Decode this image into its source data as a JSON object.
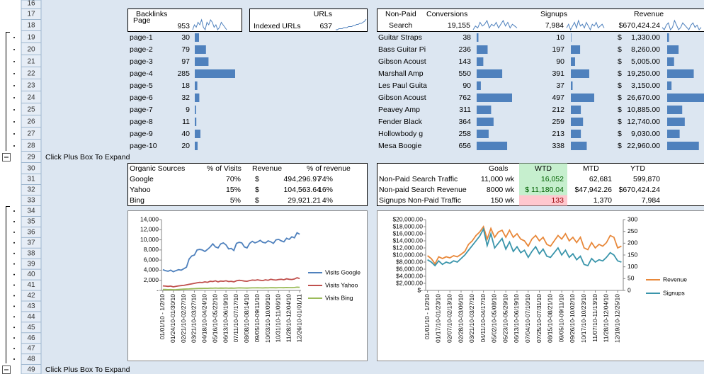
{
  "row_numbers": [
    16,
    17,
    18,
    19,
    20,
    21,
    22,
    23,
    24,
    25,
    26,
    27,
    28,
    29,
    30,
    31,
    32,
    33,
    34,
    35,
    36,
    37,
    38,
    39,
    40,
    41,
    42,
    43,
    44,
    45,
    46,
    47,
    48,
    49
  ],
  "expand_note": "Click Plus Box To Expand",
  "backlinks": {
    "page_label": "Page",
    "title": "Backlinks",
    "total": 953,
    "sparkline": [
      5,
      7,
      6,
      8,
      7,
      9,
      6,
      5,
      8,
      7,
      9,
      8,
      6,
      7,
      5,
      6,
      8,
      7,
      6,
      5
    ]
  },
  "urls": {
    "title": "URLs",
    "label": "Indexed URLs",
    "total": 637,
    "sparkline": [
      2,
      2,
      3,
      3,
      3,
      4,
      4,
      4,
      5,
      5,
      5,
      6,
      6,
      7,
      7,
      8,
      8,
      9,
      10,
      12
    ]
  },
  "pages": {
    "names": [
      "page-1",
      "page-2",
      "page-3",
      "page-4",
      "page-5",
      "page-6",
      "page-7",
      "page-8",
      "page-9",
      "page-10"
    ],
    "backlinks": [
      30,
      79,
      97,
      285,
      18,
      32,
      9,
      11,
      40,
      20
    ],
    "bar_color": "#4f81bd"
  },
  "nonpaid": {
    "header": [
      "Non-Paid",
      "Search"
    ],
    "conversions": {
      "title": "Conversions",
      "total": "19,155",
      "sparkline": [
        4,
        6,
        5,
        8,
        6,
        7,
        9,
        5,
        7,
        6,
        8,
        5,
        7,
        9,
        6,
        8,
        5,
        7,
        6,
        5
      ]
    },
    "signups": {
      "title": "Signups",
      "total": "7,984",
      "sparkline": [
        5,
        7,
        4,
        6,
        8,
        5,
        9,
        6,
        7,
        5,
        8,
        6,
        4,
        7,
        6,
        8,
        5,
        6,
        7,
        5
      ]
    },
    "revenue": {
      "title": "Revenue",
      "total": "$670,424.24",
      "sparkline": [
        6,
        5,
        7,
        8,
        5,
        6,
        9,
        7,
        5,
        6,
        8,
        7,
        6,
        5,
        7,
        8,
        6,
        7,
        5,
        6
      ]
    },
    "products": [
      "Guitar Straps",
      "Bass Guitar Pi",
      "Gibson Acoust",
      "Marshall Amp",
      "Les Paul Guita",
      "Gibson Acoust",
      "Peavey Amp",
      "Fender Black",
      "Hollowbody g",
      "Mesa Boogie"
    ],
    "conversion_values": [
      38,
      236,
      143,
      550,
      90,
      762,
      311,
      364,
      258,
      656
    ],
    "signup_values": [
      10,
      197,
      90,
      391,
      37,
      497,
      212,
      259,
      213,
      338
    ],
    "currency": "$",
    "revenue_values": [
      1330,
      8260,
      5005,
      19250,
      3150,
      26670,
      10885,
      12740,
      9030,
      22960
    ],
    "revenue_labels": [
      "1,330.00",
      "8,260.00",
      "5,005.00",
      "19,250.00",
      "3,150.00",
      "26,670.00",
      "10,885.00",
      "12,740.00",
      "9,030.00",
      "22,960.00"
    ],
    "bar_color": "#4f81bd"
  },
  "organic": {
    "headers": [
      "Organic Sources",
      "% of Visits",
      "Revenue",
      "% of revenue"
    ],
    "currency": "$",
    "rows": [
      {
        "source": "Google",
        "visits_pct": "70%",
        "revenue": "494,296.97",
        "revenue_pct": "74%"
      },
      {
        "source": "Yahoo",
        "visits_pct": "15%",
        "revenue": "104,563.64",
        "revenue_pct": "16%"
      },
      {
        "source": "Bing",
        "visits_pct": "5%",
        "revenue": "29,921.21",
        "revenue_pct": "4%"
      }
    ]
  },
  "goals": {
    "headers": [
      "Goals",
      "WTD",
      "MTD",
      "YTD"
    ],
    "wtd_header_color": "#c6efce",
    "rows": [
      {
        "label": "Non-Paid Search Traffic",
        "goal": "11,000 wk",
        "wtd": "16,052",
        "wtd_color": "#c6efce",
        "wtd_text_color": "#006100",
        "mtd": "62,681",
        "ytd": "599,870"
      },
      {
        "label": "Non-paid Search Revenue",
        "goal": "8000 wk",
        "wtd": "$ 11,180.04",
        "wtd_color": "#c6efce",
        "wtd_text_color": "#006100",
        "mtd": "$47,942.26",
        "ytd": "$670,424.24"
      },
      {
        "label": "Signups Non-Paid Traffic",
        "goal": "150 wk",
        "wtd": "133",
        "wtd_color": "#ffc7ce",
        "wtd_text_color": "#9c0006",
        "mtd": "1,370",
        "ytd": "7,984"
      }
    ]
  },
  "chart_data": [
    {
      "type": "line",
      "legend": "right",
      "categories": [
        "01/01/10 - 1/2/10",
        null,
        null,
        null,
        "01/24/10-01/30/10",
        null,
        null,
        null,
        "02/21/10-02/27/10",
        null,
        null,
        null,
        "03/21/10-03/27/10",
        null,
        null,
        null,
        "04/18/10-04/24/10",
        null,
        null,
        null,
        "05/16/10-05/22/10",
        null,
        null,
        null,
        "06/13/10-06/19/10",
        null,
        null,
        null,
        "07/11/10-07/17/10",
        null,
        null,
        null,
        "08/08/10-08/14/10",
        null,
        null,
        null,
        "09/05/10-09/11/10",
        null,
        null,
        null,
        "10/03/10-10/09/10",
        null,
        null,
        null,
        "10/31/10-11/06/10",
        null,
        null,
        null,
        "11/28/10-12/04/10",
        null,
        null,
        null,
        "12/26/10-01/01/11"
      ],
      "ylim": [
        0,
        14000
      ],
      "yticks": [
        {
          "value": 0,
          "label": "-"
        },
        {
          "value": 2000,
          "label": "2,000"
        },
        {
          "value": 4000,
          "label": "4,000"
        },
        {
          "value": 6000,
          "label": "6,000"
        },
        {
          "value": 8000,
          "label": "8,000"
        },
        {
          "value": 10000,
          "label": "10,000"
        },
        {
          "value": 12000,
          "label": "12,000"
        },
        {
          "value": 14000,
          "label": "14,000"
        }
      ],
      "series": [
        {
          "name": "Visits Google",
          "color": "#4f81bd",
          "values": [
            4100,
            3900,
            3800,
            4000,
            3700,
            3900,
            4100,
            4000,
            4300,
            4600,
            6200,
            6800,
            7000,
            8000,
            8100,
            8000,
            7700,
            8100,
            8600,
            9200,
            8600,
            8400,
            9200,
            9400,
            9000,
            8200,
            8300,
            7900,
            9300,
            9500,
            9400,
            8600,
            8400,
            9300,
            9700,
            9400,
            9600,
            9900,
            9500,
            9400,
            9800,
            9600,
            9300,
            10000,
            10100,
            9800,
            9600,
            10300,
            10100,
            10600,
            10400,
            11400,
            11100
          ]
        },
        {
          "name": "Visits Yahoo",
          "color": "#c0504d",
          "values": [
            900,
            850,
            800,
            850,
            700,
            800,
            900,
            950,
            1000,
            1100,
            1200,
            1300,
            1400,
            1500,
            1600,
            1550,
            1700,
            1600,
            1800,
            1750,
            1900,
            1700,
            1850,
            1800,
            1900,
            1750,
            1800,
            1700,
            1900,
            2000,
            1950,
            1850,
            1800,
            1950,
            2050,
            2000,
            2100,
            2000,
            1950,
            2100,
            2000,
            2200,
            2100,
            2050,
            2150,
            2200,
            2100,
            2300,
            2200,
            2150,
            2250,
            2500,
            2350
          ]
        },
        {
          "name": "Visits Bing",
          "color": "#9bbb59",
          "values": [
            200,
            180,
            150,
            170,
            140,
            160,
            200,
            220,
            250,
            280,
            300,
            320,
            350,
            380,
            400,
            390,
            420,
            410,
            450,
            440,
            470,
            430,
            460,
            450,
            480,
            440,
            460,
            430,
            480,
            500,
            490,
            470,
            460,
            490,
            510,
            500,
            520,
            510,
            490,
            520,
            510,
            540,
            530,
            520,
            540,
            550,
            530,
            570,
            560,
            550,
            570,
            650,
            600
          ]
        }
      ]
    },
    {
      "type": "line",
      "legend": "right",
      "categories": [
        "01/01/10 - 1/2/10",
        null,
        null,
        "01/17/10-01/23/10",
        null,
        null,
        "02/07/10-02/13/10",
        null,
        null,
        "02/28/10-03/06/10",
        null,
        null,
        "03/21/10-03/27/10",
        null,
        null,
        "04/11/10-04/17/10",
        null,
        null,
        "05/02/10-05/08/10",
        null,
        null,
        "05/23/10-05/29/10",
        null,
        null,
        "06/13/10-06/19/10",
        null,
        null,
        "07/04/10-07/10/10",
        null,
        null,
        "07/25/10-07/31/10",
        null,
        null,
        "08/15/10-08/21/10",
        null,
        null,
        "09/05/10-09/11/10",
        null,
        null,
        "09/26/10-10/02/10",
        null,
        null,
        "10/17/10-10/23/10",
        null,
        null,
        "11/07/10-11/13/10",
        null,
        null,
        "11/28/10-12/04/10",
        null,
        null,
        "12/19/10-12/25/10",
        null
      ],
      "ylim": [
        0,
        20000
      ],
      "yticks": [
        {
          "value": 0,
          "label": "$-"
        },
        {
          "value": 2000,
          "label": "$2,000.00"
        },
        {
          "value": 4000,
          "label": "$4,000.00"
        },
        {
          "value": 6000,
          "label": "$6,000.00"
        },
        {
          "value": 8000,
          "label": "$8,000.00"
        },
        {
          "value": 10000,
          "label": "$10,000.00"
        },
        {
          "value": 12000,
          "label": "$12,000.00"
        },
        {
          "value": 14000,
          "label": "$14,000.00"
        },
        {
          "value": 16000,
          "label": "$16,000.00"
        },
        {
          "value": 18000,
          "label": "$18,000.00"
        },
        {
          "value": 20000,
          "label": "$20,000.00"
        }
      ],
      "y2lim": [
        0,
        300
      ],
      "y2ticks": [
        0,
        50,
        100,
        150,
        200,
        250,
        300
      ],
      "series": [
        {
          "name": "Revenue",
          "color": "#e8883a",
          "values": [
            9800,
            9000,
            7500,
            9500,
            9000,
            9500,
            9200,
            9800,
            9500,
            10200,
            11000,
            13000,
            14000,
            15500,
            16500,
            18000,
            14500,
            17500,
            15000,
            16500,
            17000,
            15000,
            17000,
            15000,
            16000,
            14500,
            14000,
            12500,
            14500,
            15500,
            14000,
            15000,
            13000,
            12500,
            14000,
            15500,
            14500,
            16000,
            14000,
            15000,
            13500,
            15000,
            12000,
            11500,
            13500,
            12000,
            13000,
            12500,
            13500,
            15500,
            15000,
            12000,
            12500
          ]
        },
        {
          "name": "Signups",
          "color": "#3a95ab",
          "axis": "y2",
          "values": [
            130,
            120,
            105,
            125,
            110,
            120,
            115,
            125,
            120,
            135,
            150,
            170,
            190,
            210,
            230,
            260,
            190,
            240,
            180,
            200,
            220,
            175,
            205,
            165,
            185,
            160,
            170,
            140,
            165,
            185,
            155,
            175,
            145,
            140,
            160,
            180,
            150,
            170,
            140,
            155,
            130,
            145,
            110,
            105,
            135,
            120,
            130,
            125,
            140,
            160,
            150,
            125,
            120
          ]
        }
      ]
    }
  ]
}
